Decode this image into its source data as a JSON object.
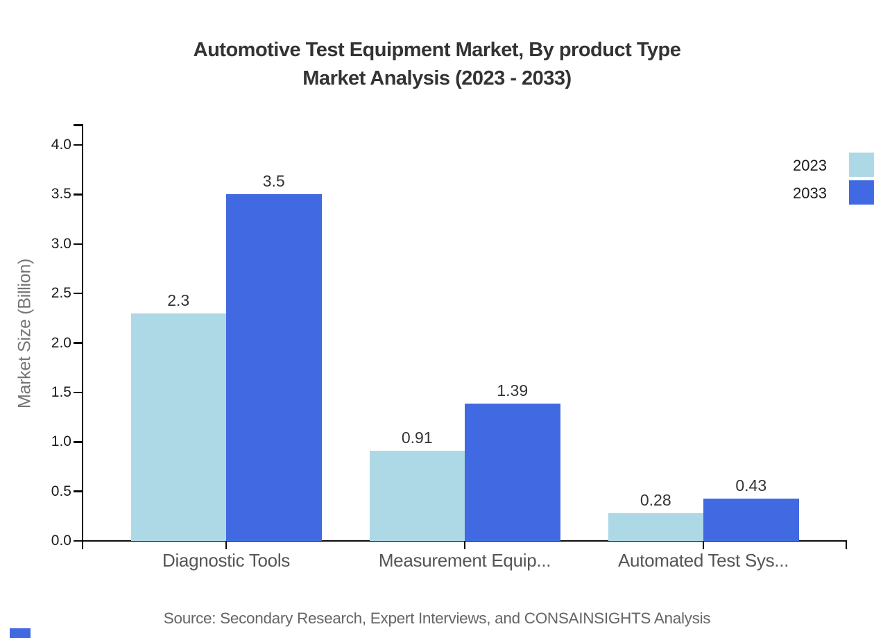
{
  "title": {
    "line1": "Automotive Test Equipment Market, By product Type",
    "line2": "Market Analysis (2023 - 2033)"
  },
  "y_axis_title": "Market Size (Billion)",
  "source_text": "Source: Secondary Research, Expert Interviews, and CONSAINSIGHTS Analysis",
  "colors": {
    "series_2023": "#ADD8E6",
    "series_2033": "#4169E1",
    "axis": "#0a0a0a",
    "title_text": "#333333",
    "category_text": "#555555",
    "ylabel_text": "#757575",
    "source_text": "#666666"
  },
  "legend": {
    "items": [
      {
        "label": "2023",
        "color": "#ADD8E6"
      },
      {
        "label": "2033",
        "color": "#4169E1"
      }
    ],
    "position": "top-right-edge"
  },
  "chart_data": {
    "type": "bar",
    "title": "Automotive Test Equipment Market, By product Type Market Analysis (2023 - 2033)",
    "categories": [
      "Diagnostic Tools",
      "Measurement Equip...",
      "Automated Test Sys..."
    ],
    "series": [
      {
        "name": "2023",
        "color": "#ADD8E6",
        "values": [
          2.3,
          0.91,
          0.28
        ]
      },
      {
        "name": "2033",
        "color": "#4169E1",
        "values": [
          3.5,
          1.39,
          0.43
        ]
      }
    ],
    "value_labels": [
      "2.3",
      "3.5",
      "0.91",
      "1.39",
      "0.28",
      "0.43"
    ],
    "xlabel": "",
    "ylabel": "Market Size (Billion)",
    "ylim": [
      0,
      4.0
    ],
    "yticks": [
      "0.0",
      "0.5",
      "1.0",
      "1.5",
      "2.0",
      "2.5",
      "3.0",
      "3.5",
      "4.0"
    ],
    "grid": false,
    "legend_position": "right edge, partially cut off",
    "bar_value_labels_shown": true
  }
}
